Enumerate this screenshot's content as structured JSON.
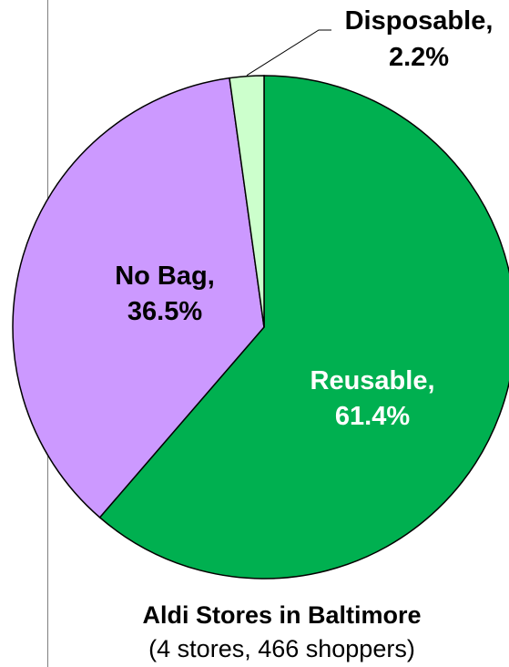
{
  "chart_data": {
    "type": "pie",
    "title": "Aldi Stores in Baltimore",
    "subtitle": "(4 stores, 466 shoppers)",
    "start_angle_deg": 0,
    "direction": "clockwise",
    "slices": [
      {
        "label": "Reusable,",
        "value_label": "61.4%",
        "value": 61.4,
        "color": "#00b050",
        "text_color": "#ffffff"
      },
      {
        "label": "No Bag,",
        "value_label": "36.5%",
        "value": 36.5,
        "color": "#cc99ff",
        "text_color": "#000000"
      },
      {
        "label": "Disposable,",
        "value_label": "2.2%",
        "value": 2.2,
        "color": "#ccffcc",
        "text_color": "#000000"
      }
    ],
    "slice_border_color": "#000000"
  }
}
